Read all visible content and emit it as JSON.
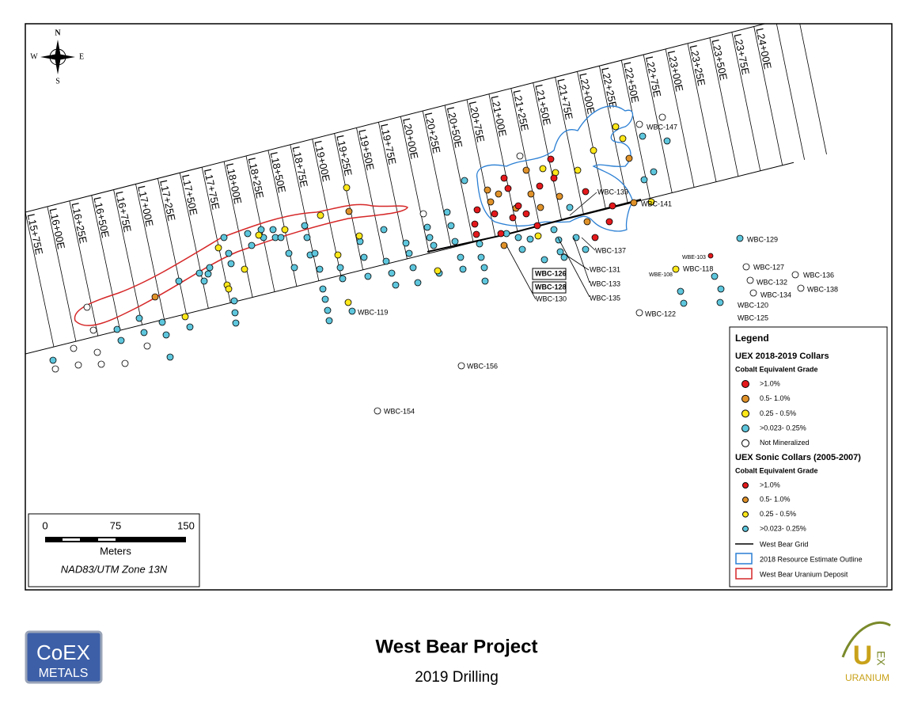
{
  "map": {
    "title": "West Bear Project",
    "subtitle": "2019 Drilling",
    "compass": {
      "n": "N",
      "s": "S",
      "e": "E",
      "w": "W"
    },
    "grid_lines": [
      "L15+75E",
      "L16+00E",
      "L16+25E",
      "L16+50E",
      "L16+75E",
      "L17+00E",
      "L17+25E",
      "L17+50E",
      "L17+75E",
      "L18+00E",
      "L18+25E",
      "L18+50E",
      "L18+75E",
      "L19+00E",
      "L19+25E",
      "L19+50E",
      "L19+75E",
      "L20+00E",
      "L20+25E",
      "L20+50E",
      "L20+75E",
      "L21+00E",
      "L21+25E",
      "L21+50E",
      "L21+75E",
      "L22+00E",
      "L22+25E",
      "L22+50E",
      "L22+75E",
      "L23+00E",
      "L23+25E",
      "L23+50E",
      "L23+75E",
      "L24+00E"
    ],
    "holes": [
      "WBC-139",
      "WBC-141",
      "WBC-147",
      "WBC-137",
      "WBC-131",
      "WBC-133",
      "WBC-135",
      "WBC-126",
      "WBC-128",
      "WBC-130",
      "WBC-119",
      "WBC-156",
      "WBC-154",
      "WBC-129",
      "WBE-103",
      "WBE-108",
      "WBC-118",
      "WBC-127",
      "WBC-136",
      "WBC-132",
      "WBC-134",
      "WBC-138",
      "WBC-120",
      "WBC-125",
      "WBC-122"
    ],
    "scale": {
      "ticks": [
        "0",
        "75",
        "150"
      ],
      "unit": "Meters",
      "projection": "NAD83/UTM Zone 13N"
    },
    "legend": {
      "title": "Legend",
      "uex_heading": "UEX 2018-2019 Collars",
      "uex_sub": "Cobalt Equivalent Grade",
      "uex_items": [
        ">1.0%",
        "0.5- 1.0%",
        "0.25 - 0.5%",
        ">0.023- 0.25%",
        "Not Mineralized"
      ],
      "sonic_heading": "UEX Sonic Collars (2005-2007)",
      "sonic_sub": "Cobalt Equivalent Grade",
      "sonic_items": [
        ">1.0%",
        "0.5- 1.0%",
        "0.25 - 0.5%",
        ">0.023- 0.25%"
      ],
      "lines": [
        "West Bear Grid",
        "2018 Resource Estimate Outline",
        "West Bear Uranium Deposit"
      ]
    },
    "logos": {
      "coex_top": "CoEX",
      "coex_bottom": "METALS",
      "uex_u": "U",
      "uex_ex": "EX",
      "uex_name": "URANIUM"
    }
  }
}
